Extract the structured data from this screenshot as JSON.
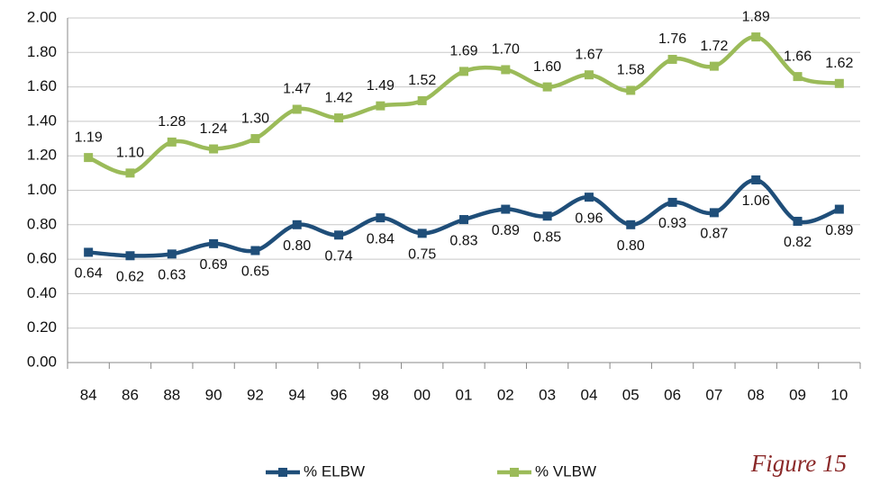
{
  "chart_data": {
    "type": "line",
    "annotation": "Figure 15",
    "categories": [
      "84",
      "86",
      "88",
      "90",
      "92",
      "94",
      "96",
      "98",
      "00",
      "01",
      "02",
      "03",
      "04",
      "05",
      "06",
      "07",
      "08",
      "09",
      "10"
    ],
    "series": [
      {
        "name": "% ELBW",
        "color": "#1f4e79",
        "values": [
          0.64,
          0.62,
          0.63,
          0.69,
          0.65,
          0.8,
          0.74,
          0.84,
          0.75,
          0.83,
          0.89,
          0.85,
          0.96,
          0.8,
          0.93,
          0.87,
          1.06,
          0.82,
          0.89
        ],
        "value_labels": [
          "0.64",
          "0.62",
          "0.63",
          "0.69",
          "0.65",
          "0.80",
          "0.74",
          "0.84",
          "0.75",
          "0.83",
          "0.89",
          "0.85",
          "0.96",
          "0.80",
          "0.93",
          "0.87",
          "1.06",
          "0.82",
          "0.89"
        ]
      },
      {
        "name": "% VLBW",
        "color": "#9bbb59",
        "values": [
          1.19,
          1.1,
          1.28,
          1.24,
          1.3,
          1.47,
          1.42,
          1.49,
          1.52,
          1.69,
          1.7,
          1.6,
          1.67,
          1.58,
          1.76,
          1.72,
          1.89,
          1.66,
          1.62
        ],
        "value_labels": [
          "1.19",
          "1.10",
          "1.28",
          "1.24",
          "1.30",
          "1.47",
          "1.42",
          "1.49",
          "1.52",
          "1.69",
          "1.70",
          "1.60",
          "1.67",
          "1.58",
          "1.76",
          "1.72",
          "1.89",
          "1.66",
          "1.62"
        ]
      }
    ],
    "ylim": [
      0,
      2
    ],
    "yticks": [
      {
        "value": 0,
        "label": "0.00"
      },
      {
        "value": 0.2,
        "label": "0.20"
      },
      {
        "value": 0.4,
        "label": "0.40"
      },
      {
        "value": 0.6,
        "label": "0.60"
      },
      {
        "value": 0.8,
        "label": "0.80"
      },
      {
        "value": 1,
        "label": "1.00"
      },
      {
        "value": 1.2,
        "label": "1.20"
      },
      {
        "value": 1.4,
        "label": "1.40"
      },
      {
        "value": 1.6,
        "label": "1.60"
      },
      {
        "value": 1.8,
        "label": "1.80"
      },
      {
        "value": 2,
        "label": "2.00"
      }
    ],
    "grid": true,
    "legend": "bottom"
  }
}
